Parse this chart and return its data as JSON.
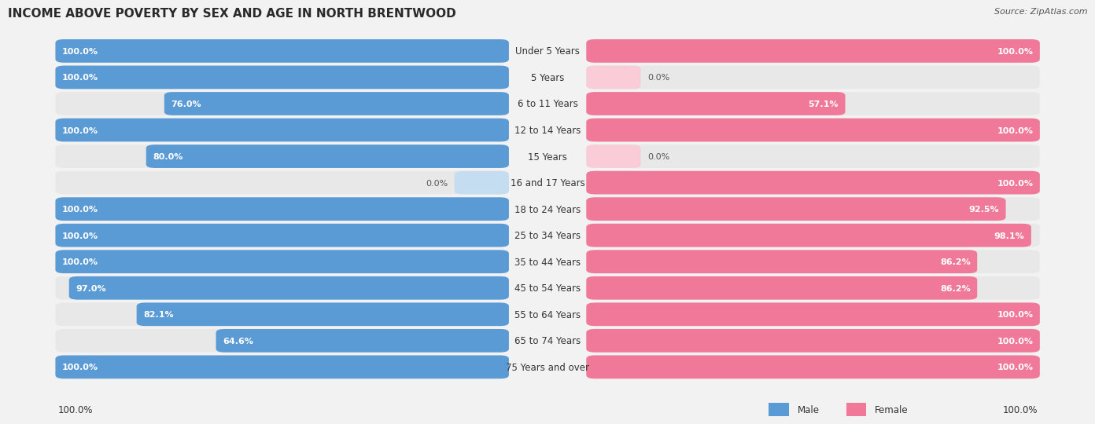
{
  "title": "INCOME ABOVE POVERTY BY SEX AND AGE IN NORTH BRENTWOOD",
  "source": "Source: ZipAtlas.com",
  "categories": [
    "Under 5 Years",
    "5 Years",
    "6 to 11 Years",
    "12 to 14 Years",
    "15 Years",
    "16 and 17 Years",
    "18 to 24 Years",
    "25 to 34 Years",
    "35 to 44 Years",
    "45 to 54 Years",
    "55 to 64 Years",
    "65 to 74 Years",
    "75 Years and over"
  ],
  "male_values": [
    100.0,
    100.0,
    76.0,
    100.0,
    80.0,
    0.0,
    100.0,
    100.0,
    100.0,
    97.0,
    82.1,
    64.6,
    100.0
  ],
  "female_values": [
    100.0,
    0.0,
    57.1,
    100.0,
    0.0,
    100.0,
    92.5,
    98.1,
    86.2,
    86.2,
    100.0,
    100.0,
    100.0
  ],
  "male_color": "#5b9bd5",
  "female_color": "#f07898",
  "male_light_color": "#c5ddf0",
  "female_light_color": "#f9ccd8",
  "bg_color": "#f2f2f2",
  "row_bg_color": "#e8e8e8",
  "title_fontsize": 11,
  "cat_fontsize": 8.5,
  "val_fontsize": 8.0,
  "legend_fontsize": 8.5,
  "source_fontsize": 8.0,
  "legend_label_male": "Male",
  "legend_label_female": "Female",
  "footer_value_left": "100.0%",
  "footer_value_right": "100.0%"
}
